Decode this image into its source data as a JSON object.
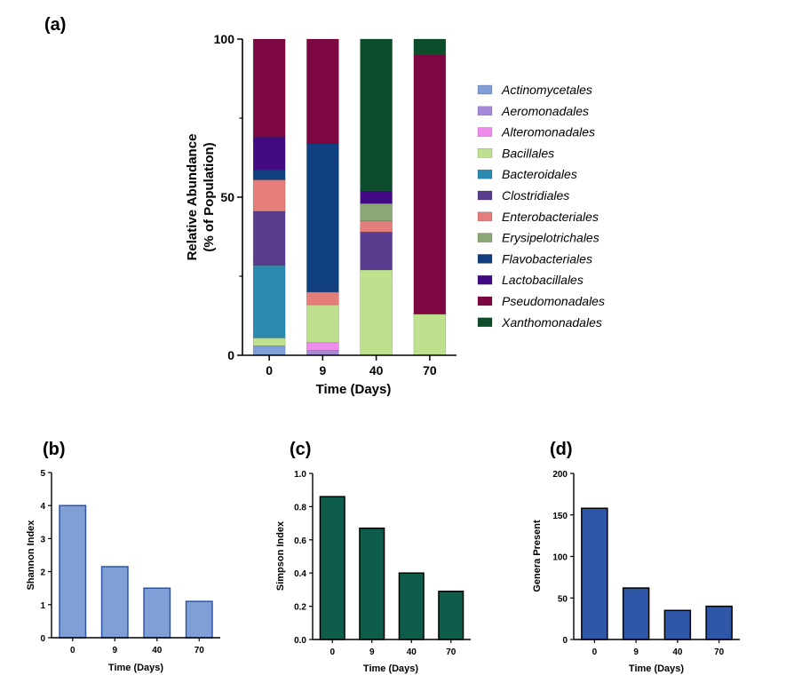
{
  "panels": {
    "a": {
      "label": "(a)",
      "ylabel_line1": "Relative Abundance",
      "ylabel_line2": "(% of Population)",
      "xlabel": "Time (Days)"
    },
    "b": {
      "label": "(b)",
      "ylabel": "Shannon Index",
      "xlabel": "Time (Days)"
    },
    "c": {
      "label": "(c)",
      "ylabel": "Simpson Index",
      "xlabel": "Time (Days)"
    },
    "d": {
      "label": "(d)",
      "ylabel": "Genera Present",
      "xlabel": "Time (Days)"
    }
  },
  "chart_data": [
    {
      "id": "a",
      "type": "bar",
      "stacked": true,
      "categories": [
        "0",
        "9",
        "40",
        "70"
      ],
      "ylim": [
        0,
        100
      ],
      "yticks": [
        "0",
        "50",
        "100"
      ],
      "legend_position": "right",
      "series": [
        {
          "name": "Actinomycetales",
          "color": "#7f9fd6",
          "values": [
            3,
            0,
            0,
            0
          ]
        },
        {
          "name": "Aeromonadales",
          "color": "#a689d8",
          "values": [
            0,
            1.5,
            0,
            0
          ]
        },
        {
          "name": "Alteromonadales",
          "color": "#ef8ded",
          "values": [
            0,
            2.5,
            0,
            0
          ]
        },
        {
          "name": "Bacillales",
          "color": "#bfe08e",
          "values": [
            2.5,
            12,
            27,
            13
          ]
        },
        {
          "name": "Bacteroidales",
          "color": "#2c8ab0",
          "values": [
            23,
            0,
            0,
            0
          ]
        },
        {
          "name": "Clostridiales",
          "color": "#5b3d90",
          "values": [
            17,
            0,
            12,
            0
          ]
        },
        {
          "name": "Enterobacteriales",
          "color": "#e57d7a",
          "values": [
            10,
            4,
            3.5,
            0
          ]
        },
        {
          "name": "Erysipelotrichales",
          "color": "#8ba874",
          "values": [
            0,
            0,
            5.5,
            0
          ]
        },
        {
          "name": "Flavobacteriales",
          "color": "#0f3f7e",
          "values": [
            3,
            47,
            0,
            0
          ]
        },
        {
          "name": "Lactobacillales",
          "color": "#420b84",
          "values": [
            10.5,
            0,
            4,
            0
          ]
        },
        {
          "name": "Pseudomonadales",
          "color": "#7d0841",
          "values": [
            31,
            33,
            0,
            82
          ]
        },
        {
          "name": "Xanthomonadales",
          "color": "#0d4d2b",
          "values": [
            0,
            0,
            48,
            5
          ]
        }
      ]
    },
    {
      "id": "b",
      "type": "bar",
      "categories": [
        "0",
        "9",
        "40",
        "70"
      ],
      "values": [
        4.0,
        2.15,
        1.5,
        1.1
      ],
      "ylim": [
        0,
        5
      ],
      "yticks": [
        "0",
        "1",
        "2",
        "3",
        "4",
        "5"
      ],
      "color": "#7f9fd6",
      "stroke": "#2f55a6"
    },
    {
      "id": "c",
      "type": "bar",
      "categories": [
        "0",
        "9",
        "40",
        "70"
      ],
      "values": [
        0.86,
        0.67,
        0.4,
        0.29
      ],
      "ylim": [
        0,
        1.0
      ],
      "yticks": [
        "0.0",
        "0.2",
        "0.4",
        "0.6",
        "0.8",
        "1.0"
      ],
      "color": "#0e5d4b",
      "stroke": "#000000"
    },
    {
      "id": "d",
      "type": "bar",
      "categories": [
        "0",
        "9",
        "40",
        "70"
      ],
      "values": [
        158,
        62,
        35,
        40
      ],
      "ylim": [
        0,
        200
      ],
      "yticks": [
        "0",
        "50",
        "100",
        "150",
        "200"
      ],
      "color": "#2f57a8",
      "stroke": "#000000"
    }
  ]
}
